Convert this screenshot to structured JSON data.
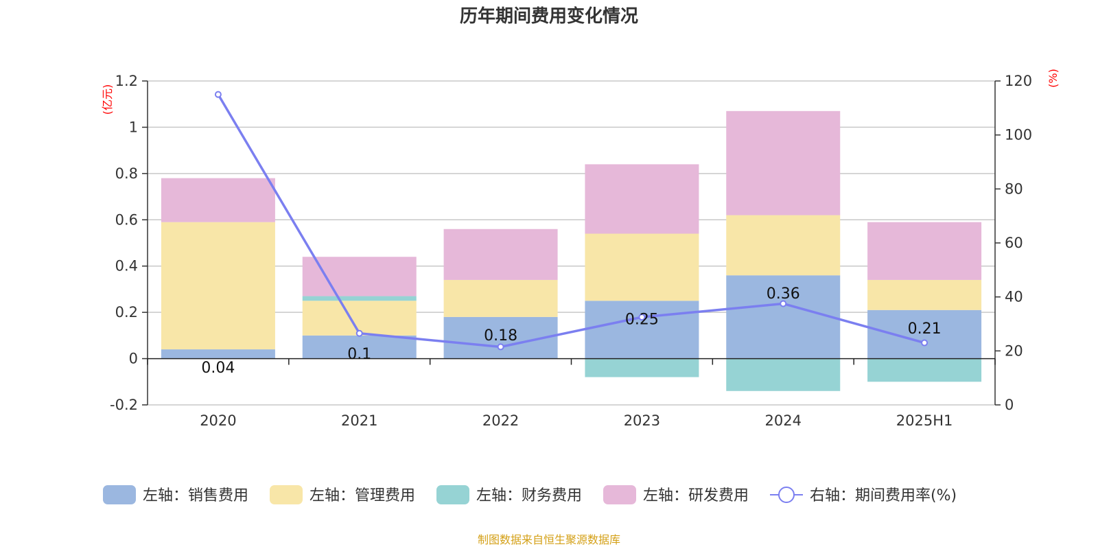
{
  "chart_data": {
    "type": "bar",
    "title": "历年期间费用变化情况",
    "categories": [
      "2020",
      "2021",
      "2022",
      "2023",
      "2024",
      "2025H1"
    ],
    "left_axis": {
      "unit": "(亿元)",
      "ylim": [
        -0.2,
        1.2
      ],
      "ticks": [
        "1.2",
        "1",
        "0.8",
        "0.6",
        "0.4",
        "0.2",
        "0",
        "-0.2"
      ],
      "tick_values": [
        1.2,
        1.0,
        0.8,
        0.6,
        0.4,
        0.2,
        0,
        -0.2
      ]
    },
    "right_axis": {
      "unit": "(%)",
      "ylim": [
        0,
        120
      ],
      "ticks": [
        "120",
        "100",
        "80",
        "60",
        "40",
        "20",
        "0"
      ],
      "tick_values": [
        120,
        100,
        80,
        60,
        40,
        20,
        0
      ]
    },
    "series": [
      {
        "name": "左轴：销售费用",
        "type": "bar",
        "axis": "left",
        "color": "#9bb7e0",
        "values": [
          0.04,
          0.1,
          0.18,
          0.25,
          0.36,
          0.21
        ],
        "labels": [
          "0.04",
          "0.1",
          "0.18",
          "0.25",
          "0.36",
          "0.21"
        ]
      },
      {
        "name": "左轴：管理费用",
        "type": "bar",
        "axis": "left",
        "color": "#f8e6a8",
        "values": [
          0.55,
          0.15,
          0.16,
          0.29,
          0.26,
          0.13
        ]
      },
      {
        "name": "左轴：财务费用",
        "type": "bar",
        "axis": "left",
        "color": "#96d3d4",
        "values": [
          0.0,
          0.02,
          0.0,
          -0.08,
          -0.14,
          -0.1
        ]
      },
      {
        "name": "左轴：研发费用",
        "type": "bar",
        "axis": "left",
        "color": "#e6b8d9",
        "values": [
          0.19,
          0.17,
          0.22,
          0.3,
          0.45,
          0.25
        ]
      },
      {
        "name": "右轴：期间费用率(%)",
        "type": "line",
        "axis": "right",
        "color": "#7b7ff0",
        "values": [
          115.0,
          26.5,
          21.5,
          32.5,
          37.5,
          23.0
        ]
      }
    ],
    "legend_position": "bottom",
    "grid": true
  },
  "source_note": "制图数据来自恒生聚源数据库"
}
